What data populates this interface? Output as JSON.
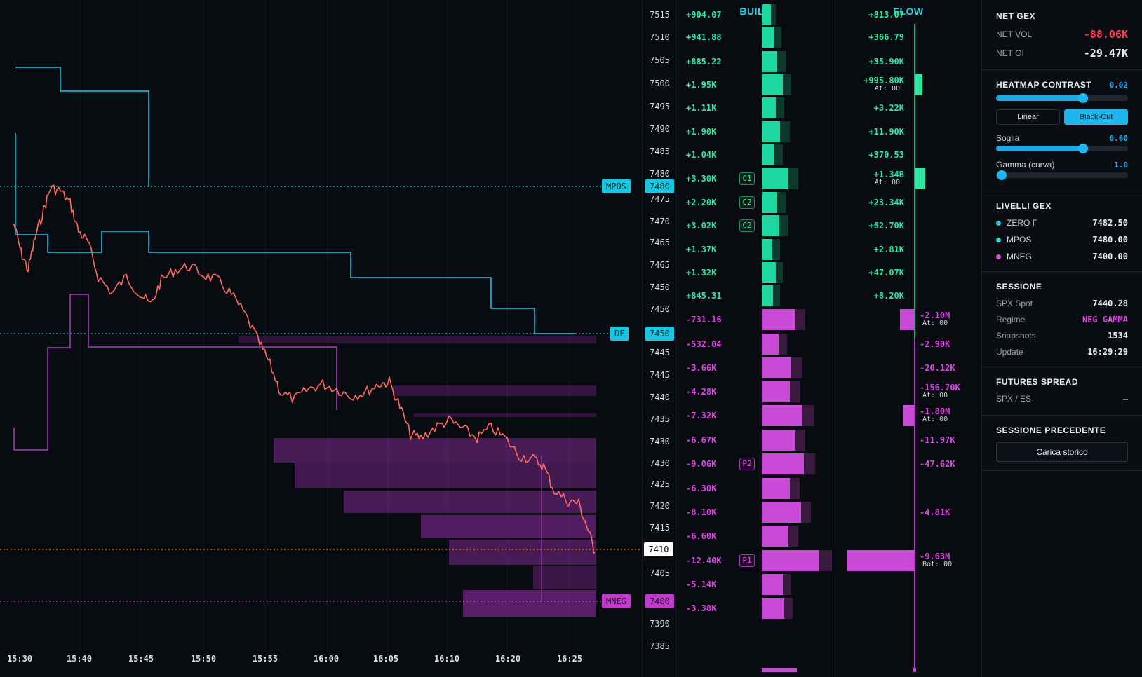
{
  "chart": {
    "time_labels": [
      "15:30",
      "15:40",
      "15:45",
      "15:50",
      "15:55",
      "16:00",
      "16:05",
      "16:10",
      "16:20",
      "16:25"
    ],
    "tags": {
      "mpos": {
        "label": "MPOS",
        "price": "7480"
      },
      "df": {
        "label": "DF",
        "price": "7450"
      },
      "mneg": {
        "label": "MNEG",
        "price": "7400"
      },
      "current_price": "7410"
    }
  },
  "price_axis": [
    "7515",
    "7510",
    "7505",
    "7500",
    "7495",
    "7490",
    "7485",
    "7480",
    "7475",
    "7470",
    "7465",
    "7465",
    "7450",
    "7450",
    "7445",
    "7445",
    "7440",
    "7435",
    "7430",
    "7430",
    "7425",
    "7420",
    "7415",
    "7405",
    "7390",
    "7385"
  ],
  "build": {
    "title": "BUILD",
    "rows": [
      {
        "v": "+904.07",
        "s": "pos"
      },
      {
        "v": "+941.88",
        "s": "pos"
      },
      {
        "v": "+885.22",
        "s": "pos"
      },
      {
        "v": "+1.95K",
        "s": "pos"
      },
      {
        "v": "+1.11K",
        "s": "pos"
      },
      {
        "v": "+1.90K",
        "s": "pos"
      },
      {
        "v": "+1.04K",
        "s": "pos"
      },
      {
        "v": "+3.30K",
        "s": "pos",
        "badge": "C1"
      },
      {
        "v": "+2.20K",
        "s": "pos",
        "badge": "C2"
      },
      {
        "v": "+3.02K",
        "s": "pos",
        "badge": "C2"
      },
      {
        "v": "+1.37K",
        "s": "pos"
      },
      {
        "v": "+1.32K",
        "s": "pos"
      },
      {
        "v": "+845.31",
        "s": "pos"
      },
      {
        "v": "-731.16",
        "s": "neg"
      },
      {
        "v": "-532.04",
        "s": "neg"
      },
      {
        "v": "-3.66K",
        "s": "neg"
      },
      {
        "v": "-4.28K",
        "s": "neg"
      },
      {
        "v": "-7.32K",
        "s": "neg"
      },
      {
        "v": "-6.67K",
        "s": "neg"
      },
      {
        "v": "-9.06K",
        "s": "neg",
        "badge": "P2"
      },
      {
        "v": "-6.30K",
        "s": "neg"
      },
      {
        "v": "-8.10K",
        "s": "neg"
      },
      {
        "v": "-6.60K",
        "s": "neg"
      },
      {
        "v": "-12.40K",
        "s": "neg",
        "badge": "P1"
      },
      {
        "v": "-5.14K",
        "s": "neg"
      },
      {
        "v": "-3.38K",
        "s": "neg"
      }
    ]
  },
  "flow": {
    "title": "FLOW",
    "rows": [
      {
        "v": "+813.07",
        "s": "pos"
      },
      {
        "v": "+366.79",
        "s": "pos"
      },
      {
        "v": "+35.90K",
        "s": "pos"
      },
      {
        "v": "+995.80K",
        "s": "pos",
        "sub": "At: 00"
      },
      {
        "v": "+3.22K",
        "s": "pos"
      },
      {
        "v": "+11.90K",
        "s": "pos"
      },
      {
        "v": "+370.53",
        "s": "pos"
      },
      {
        "v": "+1.34B",
        "s": "pos",
        "sub": "At: 00"
      },
      {
        "v": "+23.34K",
        "s": "pos"
      },
      {
        "v": "+62.70K",
        "s": "pos"
      },
      {
        "v": "+2.81K",
        "s": "pos"
      },
      {
        "v": "+47.07K",
        "s": "pos"
      },
      {
        "v": "+8.20K",
        "s": "pos"
      },
      {
        "v": "-2.10M",
        "s": "neg",
        "sub": "At: 00"
      },
      {
        "v": "-2.90K",
        "s": "neg"
      },
      {
        "v": "-20.12K",
        "s": "neg"
      },
      {
        "v": "-156.70K",
        "s": "neg",
        "sub": "At: 00"
      },
      {
        "v": "-1.80M",
        "s": "neg",
        "sub": "At: 00"
      },
      {
        "v": "-11.97K",
        "s": "neg"
      },
      {
        "v": "-47.62K",
        "s": "neg"
      },
      {
        "v": "",
        "s": "neg"
      },
      {
        "v": "-4.81K",
        "s": "neg"
      },
      {
        "v": "",
        "s": "neg"
      },
      {
        "v": "-9.63M",
        "s": "neg",
        "sub": "Bot: 00"
      },
      {
        "v": "",
        "s": "neg"
      },
      {
        "v": "",
        "s": "neg"
      }
    ]
  },
  "side": {
    "net_gex": {
      "title": "NET GEX",
      "vol_label": "NET VOL",
      "vol_value": "-88.06K",
      "oi_label": "NET OI",
      "oi_value": "-29.47K"
    },
    "heatmap": {
      "title": "HEATMAP CONTRAST",
      "contrast": "0.02",
      "contrast_level": 0.66,
      "mode_linear": "Linear",
      "mode_blackcut": "Black-Cut",
      "soglia_label": "Soglia",
      "soglia": "0.60",
      "soglia_level": 0.66,
      "gamma_label": "Gamma (curva)",
      "gamma": "1.0",
      "gamma_level": 0.05
    },
    "livelli": {
      "title": "LIVELLI GEX",
      "items": [
        {
          "label": "ZERO Γ",
          "value": "7482.50",
          "color": "#22c6ea"
        },
        {
          "label": "MPOS",
          "value": "7480.00",
          "color": "#22d6c9"
        },
        {
          "label": "MNEG",
          "value": "7400.00",
          "color": "#d44ad8"
        }
      ]
    },
    "sessione": {
      "title": "SESSIONE",
      "spot_label": "SPX Spot",
      "spot": "7440.28",
      "regime_label": "Regime",
      "regime": "NEG GAMMA",
      "snap_label": "Snapshots",
      "snap": "1534",
      "update_label": "Update",
      "update": "16:29:29"
    },
    "futures": {
      "title": "FUTURES SPREAD",
      "label": "SPX / ES",
      "value": "–"
    },
    "precedente": {
      "title": "SESSIONE PRECEDENTE",
      "button": "Carica storico"
    }
  }
}
